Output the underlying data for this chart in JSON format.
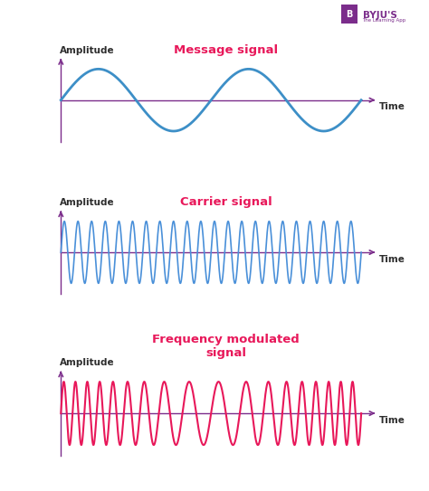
{
  "bg_color": "#ffffff",
  "axis_color": "#7b2d8b",
  "message_color": "#3d8fc7",
  "carrier_color": "#4a90d9",
  "fm_color": "#e8185a",
  "amplitude_label": "Amplitude",
  "time_label": "Time",
  "message_title": "Message signal",
  "carrier_title": "Carrier signal",
  "fm_title": "Frequency modulated\nsignal",
  "title_color_msg": "#e8185a",
  "title_color_carrier": "#e8185a",
  "title_color_fm": "#e8185a",
  "label_color": "#2d2d2d",
  "message_freq_cycles": 2.0,
  "carrier_cycles": 22,
  "fm_base_freq": 18,
  "fm_mod_depth": 8,
  "fm_mod_freq": 1.0,
  "byju_color": "#7b2d8b"
}
